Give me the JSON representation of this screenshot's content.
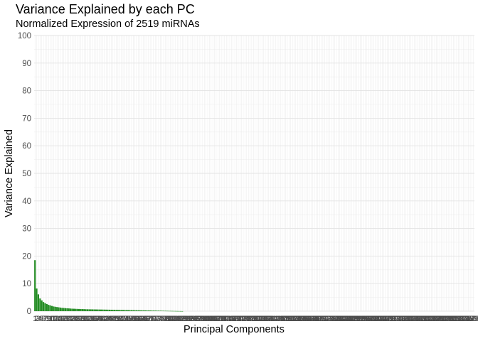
{
  "chart_data": {
    "type": "bar",
    "title": "Variance Explained by each PC",
    "subtitle": "Normalized Expression of 2519 miRNAs",
    "xlabel": "Principal Components",
    "ylabel": "Variance Explained",
    "ylim": [
      0,
      100
    ],
    "y_ticks": [
      0,
      10,
      20,
      30,
      40,
      50,
      60,
      70,
      80,
      90,
      100
    ],
    "n_components": 260,
    "grid": true,
    "bar_color": "#228B22",
    "x_tick_color": "#4d4d4d",
    "values_leading": [
      18.5,
      8.2,
      6.1,
      4.6,
      3.9,
      3.3,
      2.9,
      2.6,
      2.3,
      2.1,
      1.9,
      1.7,
      1.6,
      1.5,
      1.4,
      1.3,
      1.2,
      1.15,
      1.1,
      1.05,
      1.0,
      0.95,
      0.9,
      0.88,
      0.85,
      0.82,
      0.8,
      0.78,
      0.76,
      0.74
    ],
    "values_tail_start": 0.7,
    "values_tail_end": 0.0,
    "values_tail_zero_after": 88
  }
}
